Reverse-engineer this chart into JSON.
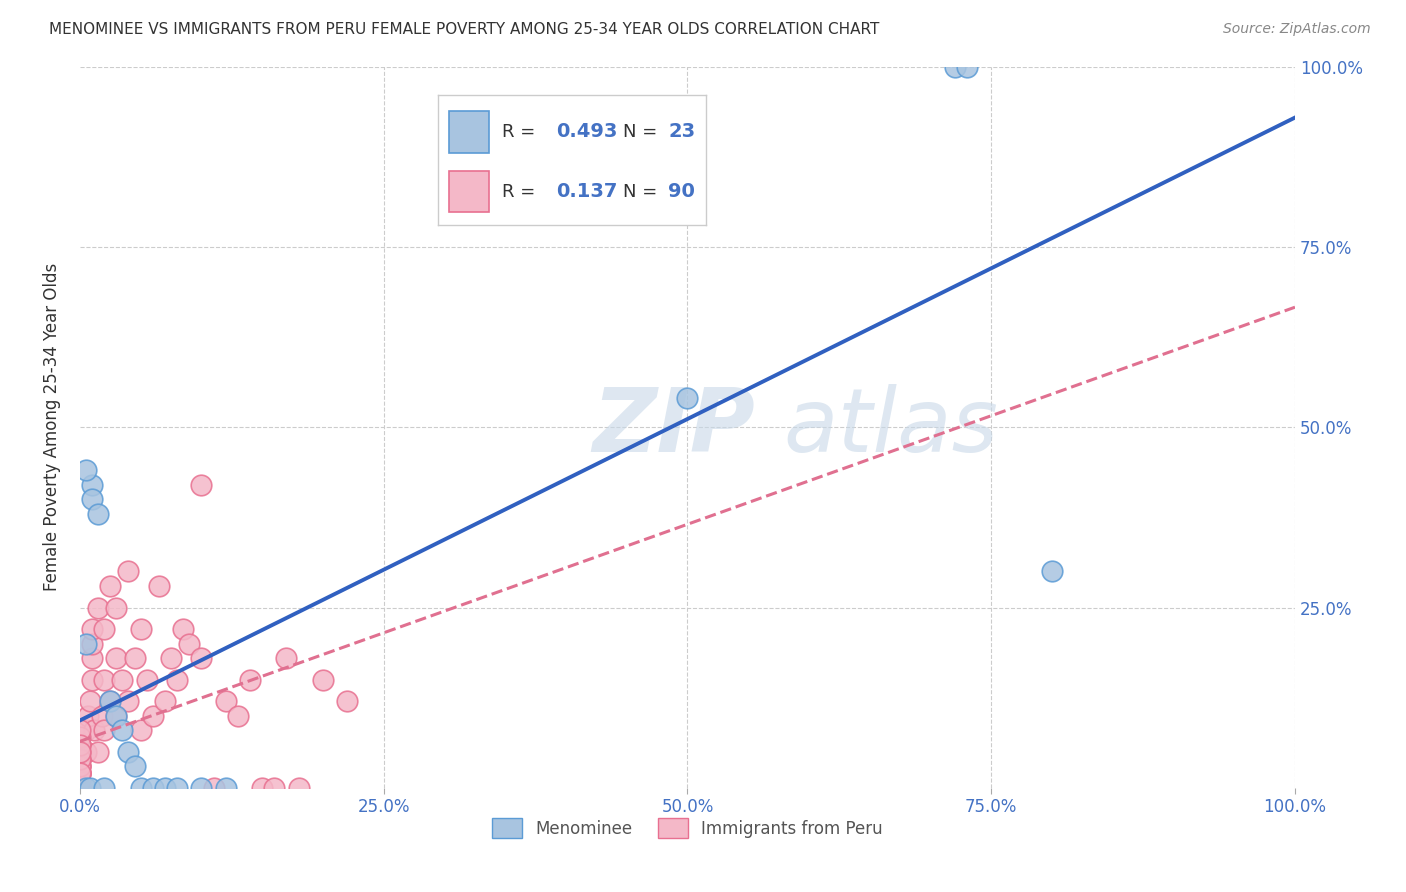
{
  "title": "MENOMINEE VS IMMIGRANTS FROM PERU FEMALE POVERTY AMONG 25-34 YEAR OLDS CORRELATION CHART",
  "source": "Source: ZipAtlas.com",
  "ylabel": "Female Poverty Among 25-34 Year Olds",
  "background_color": "#ffffff",
  "grid_color": "#cccccc",
  "watermark_zip": "ZIP",
  "watermark_atlas": "atlas",
  "menominee_color": "#a8c4e0",
  "peru_color": "#f4b8c8",
  "menominee_edge": "#5b9bd5",
  "peru_edge": "#e87090",
  "trend_menominee_color": "#3060c0",
  "trend_peru_color": "#e07090",
  "menominee_R": "0.493",
  "menominee_N": "23",
  "peru_R": "0.137",
  "peru_N": "90",
  "R_color": "#4472c4",
  "N_color": "#2ca02c",
  "menominee_x": [
    0.005,
    0.005,
    0.008,
    0.01,
    0.01,
    0.015,
    0.02,
    0.025,
    0.03,
    0.035,
    0.04,
    0.045,
    0.05,
    0.06,
    0.07,
    0.08,
    0.1,
    0.12,
    0.005,
    0.72,
    0.73,
    0.5,
    0.8
  ],
  "menominee_y": [
    0.2,
    0.0,
    0.0,
    0.42,
    0.4,
    0.38,
    0.0,
    0.12,
    0.1,
    0.08,
    0.05,
    0.03,
    0.0,
    0.0,
    0.0,
    0.0,
    0.0,
    0.0,
    0.44,
    1.0,
    1.0,
    0.54,
    0.3
  ],
  "peru_x": [
    0.0,
    0.0,
    0.0,
    0.0,
    0.0,
    0.0,
    0.0,
    0.0,
    0.0,
    0.0,
    0.0,
    0.0,
    0.0,
    0.0,
    0.0,
    0.0,
    0.0,
    0.0,
    0.0,
    0.0,
    0.0,
    0.0,
    0.0,
    0.0,
    0.0,
    0.0,
    0.0,
    0.0,
    0.0,
    0.0,
    0.005,
    0.005,
    0.007,
    0.008,
    0.01,
    0.01,
    0.01,
    0.01,
    0.012,
    0.015,
    0.015,
    0.018,
    0.02,
    0.02,
    0.02,
    0.025,
    0.025,
    0.03,
    0.03,
    0.03,
    0.035,
    0.04,
    0.04,
    0.045,
    0.05,
    0.05,
    0.055,
    0.06,
    0.065,
    0.07,
    0.075,
    0.08,
    0.085,
    0.09,
    0.1,
    0.1,
    0.11,
    0.12,
    0.13,
    0.14,
    0.15,
    0.16,
    0.17,
    0.18,
    0.2,
    0.22,
    0.0,
    0.0,
    0.0,
    0.0,
    0.0,
    0.0,
    0.0,
    0.0,
    0.0,
    0.0,
    0.0,
    0.0,
    0.0,
    0.0
  ],
  "peru_y": [
    0.0,
    0.0,
    0.0,
    0.0,
    0.0,
    0.0,
    0.0,
    0.0,
    0.0,
    0.0,
    0.0,
    0.0,
    0.0,
    0.0,
    0.0,
    0.0,
    0.0,
    0.0,
    0.0,
    0.0,
    0.0,
    0.0,
    0.0,
    0.0,
    0.0,
    0.02,
    0.02,
    0.03,
    0.04,
    0.05,
    0.05,
    0.08,
    0.1,
    0.12,
    0.15,
    0.18,
    0.2,
    0.22,
    0.08,
    0.05,
    0.25,
    0.1,
    0.08,
    0.15,
    0.22,
    0.12,
    0.28,
    0.1,
    0.18,
    0.25,
    0.15,
    0.12,
    0.3,
    0.18,
    0.08,
    0.22,
    0.15,
    0.1,
    0.28,
    0.12,
    0.18,
    0.15,
    0.22,
    0.2,
    0.18,
    0.42,
    0.0,
    0.12,
    0.1,
    0.15,
    0.0,
    0.0,
    0.18,
    0.0,
    0.15,
    0.12,
    0.02,
    0.03,
    0.04,
    0.05,
    0.06,
    0.07,
    0.01,
    0.02,
    0.03,
    0.08,
    0.04,
    0.06,
    0.05,
    0.02
  ],
  "xlim": [
    0.0,
    1.0
  ],
  "ylim": [
    0.0,
    1.0
  ],
  "xtick_values": [
    0.0,
    0.25,
    0.5,
    0.75,
    1.0
  ],
  "xtick_labels": [
    "0.0%",
    "25.0%",
    "50.0%",
    "75.0%",
    "100.0%"
  ],
  "ytick_values": [
    0.25,
    0.5,
    0.75,
    1.0
  ],
  "ytick_labels": [
    "25.0%",
    "50.0%",
    "75.0%",
    "100.0%"
  ]
}
